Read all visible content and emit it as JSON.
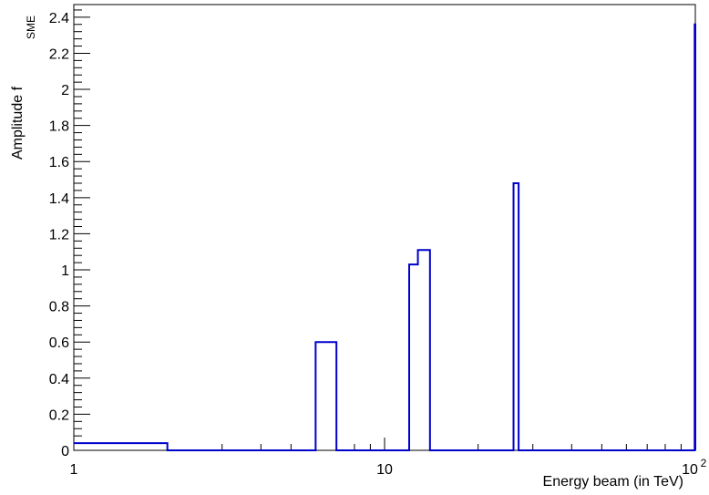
{
  "chart_data": {
    "type": "line",
    "step_histogram": true,
    "x_scale": "log",
    "xlim": [
      1,
      100
    ],
    "ylim": [
      0,
      2.47
    ],
    "grid": false,
    "line_color": "#0000cc",
    "xlabel": "Energy beam (in TeV)",
    "ylabel": "Amplitude f",
    "ylabel_subscript": "SME",
    "x_tick_labels": [
      {
        "value": 1,
        "label": "1"
      },
      {
        "value": 10,
        "label": "10"
      },
      {
        "value": 100,
        "label": "10",
        "sup": "2"
      }
    ],
    "y_tick_labels": [
      "0",
      "0.2",
      "0.4",
      "0.6",
      "0.8",
      "1",
      "1.2",
      "1.4",
      "1.6",
      "1.8",
      "2",
      "2.2",
      "2.4"
    ],
    "bins": [
      {
        "x0": 1.0,
        "x1": 2.0,
        "y": 0.04
      },
      {
        "x0": 2.0,
        "x1": 6.0,
        "y": 0.0
      },
      {
        "x0": 6.0,
        "x1": 7.0,
        "y": 0.6
      },
      {
        "x0": 7.0,
        "x1": 12.0,
        "y": 0.0
      },
      {
        "x0": 12.0,
        "x1": 12.8,
        "y": 1.03
      },
      {
        "x0": 12.8,
        "x1": 14.0,
        "y": 1.11
      },
      {
        "x0": 14.0,
        "x1": 26.0,
        "y": 0.0
      },
      {
        "x0": 26.0,
        "x1": 27.0,
        "y": 1.48
      },
      {
        "x0": 27.0,
        "x1": 99.5,
        "y": 0.0
      },
      {
        "x0": 99.5,
        "x1": 100.0,
        "y": 2.36
      }
    ]
  }
}
